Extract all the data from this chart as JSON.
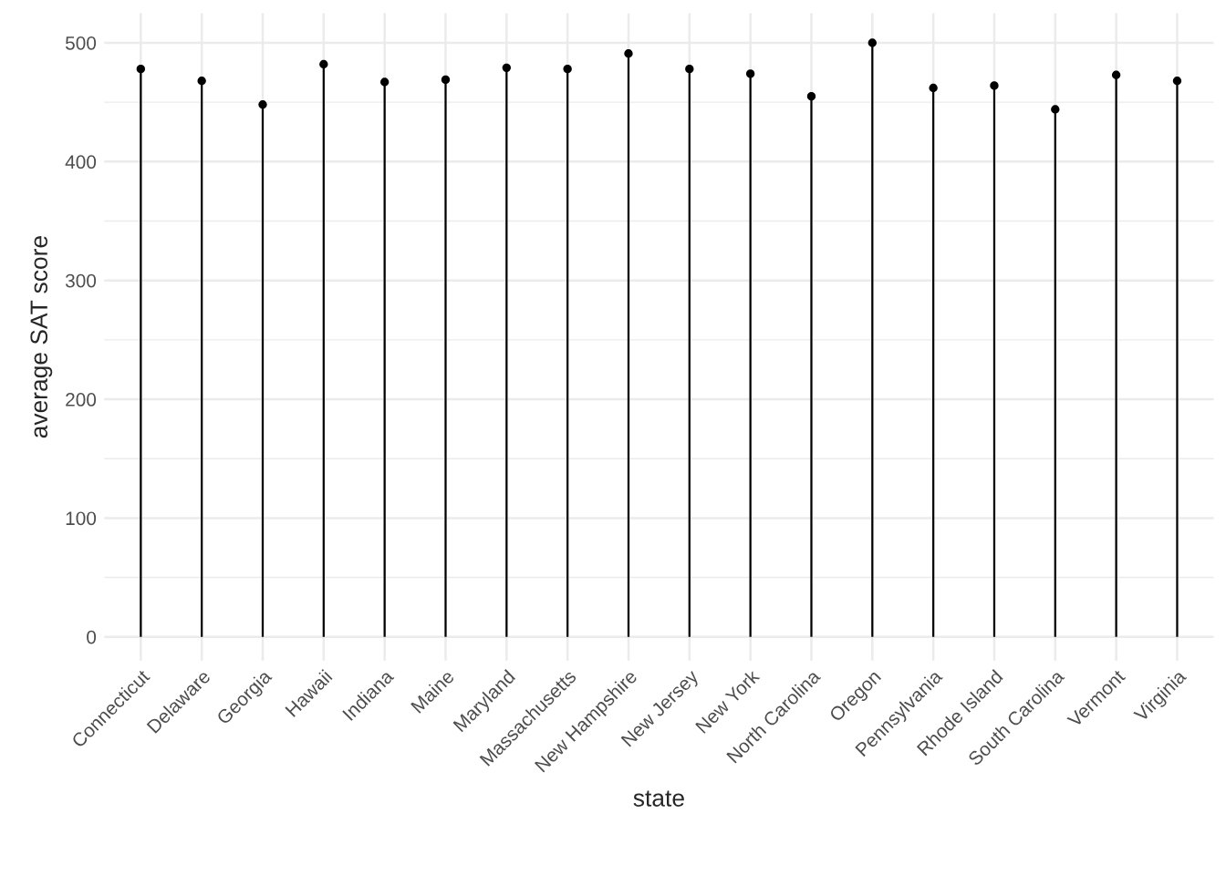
{
  "chart_data": {
    "type": "lollipop",
    "xlabel": "state",
    "ylabel": "average SAT score",
    "categories": [
      "Connecticut",
      "Delaware",
      "Georgia",
      "Hawaii",
      "Indiana",
      "Maine",
      "Maryland",
      "Massachusetts",
      "New Hampshire",
      "New Jersey",
      "New York",
      "North Carolina",
      "Oregon",
      "Pennsylvania",
      "Rhode Island",
      "South Carolina",
      "Vermont",
      "Virginia"
    ],
    "values": [
      478,
      468,
      448,
      482,
      467,
      469,
      479,
      478,
      491,
      478,
      474,
      455,
      500,
      462,
      464,
      444,
      473,
      468
    ],
    "color": "#000000",
    "ylim": [
      -20,
      525
    ],
    "yticks": [
      0,
      100,
      200,
      300,
      400,
      500
    ],
    "grid": true,
    "marker": "circle"
  }
}
